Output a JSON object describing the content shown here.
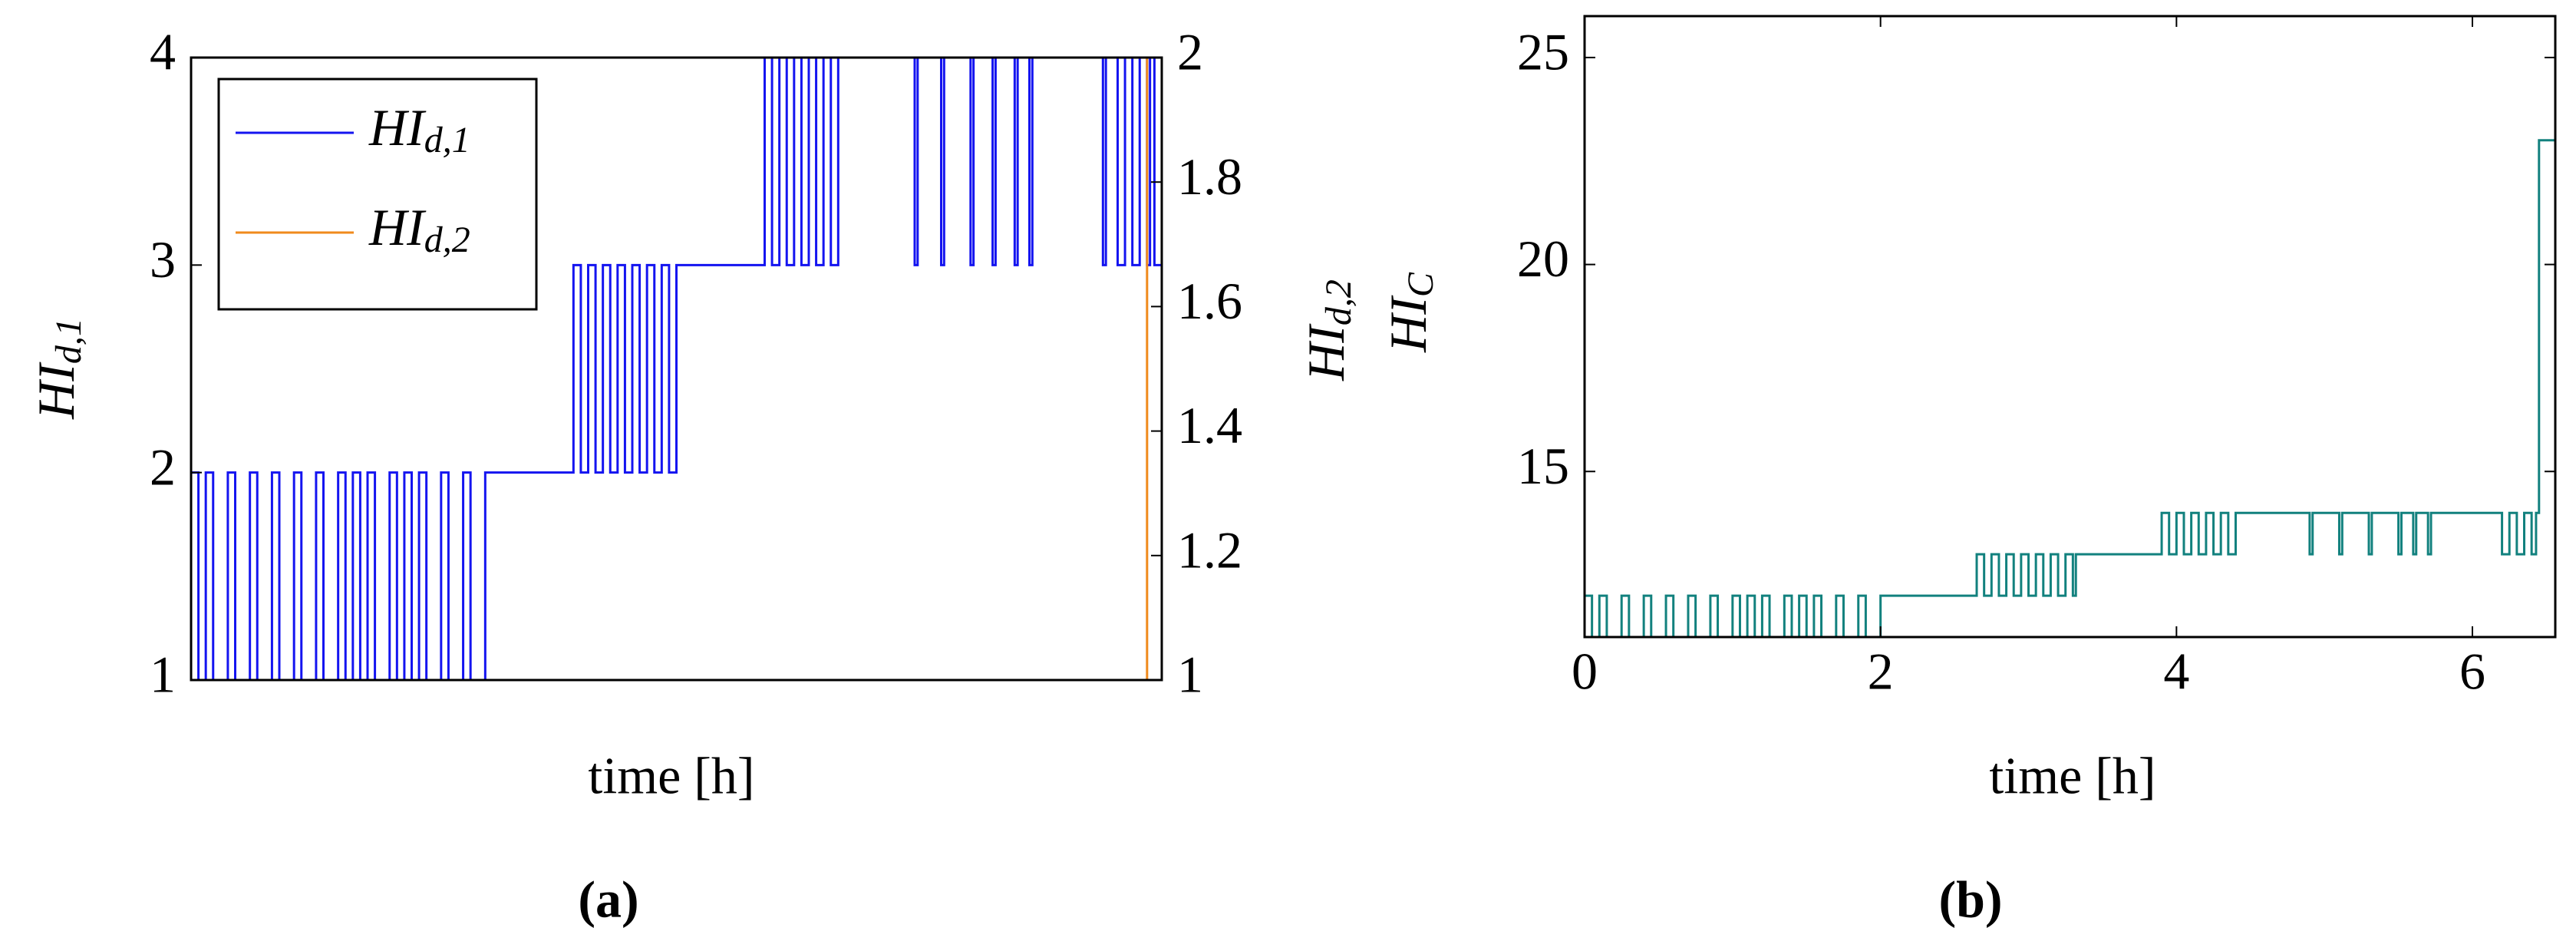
{
  "chart_data": [
    {
      "type": "line",
      "step": "post",
      "xlabel": "time [h]",
      "ylabel": {
        "text": "HI",
        "sub": "d,1"
      },
      "y2label": {
        "text": "HI",
        "sub": "d,2"
      },
      "caption": "(a)",
      "xlim": [
        0,
        6.6
      ],
      "ylim": [
        1,
        4
      ],
      "yticks": [
        1,
        2,
        3,
        4
      ],
      "y2lim": [
        1,
        2
      ],
      "y2ticks": [
        1,
        1.2,
        1.4,
        1.6,
        1.8,
        2
      ],
      "legend": "upper left",
      "series": [
        {
          "name": "HI",
          "name_sub": "d,1",
          "color": "#1414f0",
          "x": [
            0,
            0.05,
            0.1,
            0.15,
            0.25,
            0.3,
            0.4,
            0.45,
            0.55,
            0.6,
            0.7,
            0.75,
            0.85,
            0.9,
            1.0,
            1.05,
            1.1,
            1.15,
            1.2,
            1.25,
            1.35,
            1.4,
            1.45,
            1.5,
            1.55,
            1.6,
            1.7,
            1.75,
            1.85,
            1.9,
            2.0,
            2.6,
            2.65,
            2.7,
            2.75,
            2.8,
            2.85,
            2.9,
            2.95,
            3.0,
            3.05,
            3.1,
            3.15,
            3.2,
            3.25,
            3.3,
            3.9,
            3.95,
            4.0,
            4.05,
            4.1,
            4.15,
            4.2,
            4.25,
            4.3,
            4.35,
            4.4,
            4.92,
            4.94,
            5.1,
            5.12,
            5.3,
            5.32,
            5.45,
            5.47,
            5.6,
            5.62,
            5.7,
            5.72,
            6.2,
            6.22,
            6.3,
            6.35,
            6.4,
            6.45,
            6.5,
            6.52,
            6.55,
            6.6
          ],
          "values": [
            2,
            1,
            2,
            1,
            2,
            1,
            2,
            1,
            2,
            1,
            2,
            1,
            2,
            1,
            2,
            1,
            2,
            1,
            2,
            1,
            2,
            1,
            2,
            1,
            2,
            1,
            2,
            1,
            2,
            1,
            2,
            3,
            2,
            3,
            2,
            3,
            2,
            3,
            2,
            3,
            2,
            3,
            2,
            3,
            2,
            3,
            4,
            3,
            4,
            3,
            4,
            3,
            4,
            3,
            4,
            3,
            4,
            3,
            4,
            3,
            4,
            3,
            4,
            3,
            4,
            3,
            4,
            3,
            4,
            3,
            4,
            3,
            4,
            3,
            4,
            3,
            4,
            3,
            3
          ]
        },
        {
          "name": "HI",
          "name_sub": "d,2",
          "color": "#f08a1c",
          "axis": "y2",
          "x": [
            0,
            6.5,
            6.6
          ],
          "values": [
            1,
            2,
            2
          ]
        }
      ]
    },
    {
      "type": "line",
      "step": "post",
      "xlabel": "time [h]",
      "ylabel": {
        "text": "HI",
        "sub": "C"
      },
      "caption": "(b)",
      "xlim": [
        0,
        6.56
      ],
      "xticks": [
        0,
        2,
        4,
        6
      ],
      "ylim": [
        11,
        26
      ],
      "yticks": [
        15,
        20,
        25
      ],
      "series": [
        {
          "color": "#12817e",
          "x": [
            0,
            0.05,
            0.1,
            0.15,
            0.25,
            0.3,
            0.4,
            0.45,
            0.55,
            0.6,
            0.7,
            0.75,
            0.85,
            0.9,
            1.0,
            1.05,
            1.1,
            1.15,
            1.2,
            1.25,
            1.35,
            1.4,
            1.45,
            1.5,
            1.55,
            1.6,
            1.7,
            1.75,
            1.85,
            1.9,
            2.0,
            2.65,
            2.7,
            2.75,
            2.8,
            2.85,
            2.9,
            2.95,
            3.0,
            3.05,
            3.1,
            3.15,
            3.2,
            3.25,
            3.3,
            3.32,
            3.9,
            3.95,
            4.0,
            4.05,
            4.1,
            4.15,
            4.2,
            4.25,
            4.3,
            4.35,
            4.4,
            4.9,
            4.92,
            5.1,
            5.12,
            5.3,
            5.32,
            5.5,
            5.52,
            5.6,
            5.62,
            5.7,
            5.72,
            6.2,
            6.25,
            6.3,
            6.35,
            6.4,
            6.43,
            6.45,
            6.56
          ],
          "values": [
            12,
            11,
            12,
            11,
            12,
            11,
            12,
            11,
            12,
            11,
            12,
            11,
            12,
            11,
            12,
            11,
            12,
            11,
            12,
            11,
            12,
            11,
            12,
            11,
            12,
            11,
            12,
            11,
            12,
            11,
            12,
            13,
            12,
            13,
            12,
            13,
            12,
            13,
            12,
            13,
            12,
            13,
            12,
            13,
            12,
            13,
            14,
            13,
            14,
            13,
            14,
            13,
            14,
            13,
            14,
            13,
            14,
            13,
            14,
            13,
            14,
            13,
            14,
            13,
            14,
            13,
            14,
            13,
            14,
            13,
            14,
            13,
            14,
            13,
            14,
            23,
            23
          ]
        }
      ]
    }
  ]
}
